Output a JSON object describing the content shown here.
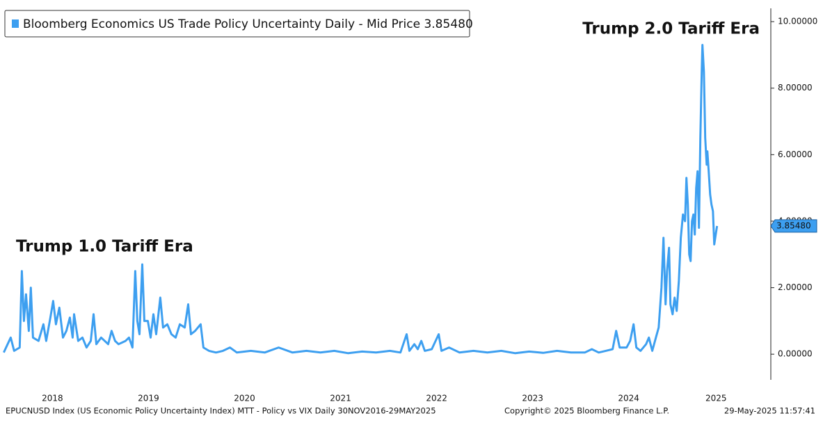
{
  "chart_data": {
    "type": "line",
    "annotations": [
      "Trump 1.0 Tariff Era",
      "Trump 2.0 Tariff Era"
    ],
    "footer_left": "EPUCNUSD Index (US Economic Policy Uncertainty Index) MTT - Policy vs VIX  Daily 30NOV2016-29MAY2025",
    "footer_center": "Copyright© 2025 Bloomberg Finance L.P.",
    "footer_right": "29-May-2025 11:57:41",
    "last_value_label": "3.85480",
    "xlim": [
      2017.99,
      2025.98
    ],
    "xticks": [
      {
        "value": 2018.5,
        "label": "2018"
      },
      {
        "value": 2019.5,
        "label": "2019"
      },
      {
        "value": 2020.5,
        "label": "2020"
      },
      {
        "value": 2021.5,
        "label": "2021"
      },
      {
        "value": 2022.5,
        "label": "2022"
      },
      {
        "value": 2023.5,
        "label": "2023"
      },
      {
        "value": 2024.5,
        "label": "2024"
      },
      {
        "value": 2025.41,
        "label": "2025"
      }
    ],
    "ylim": [
      -0.77,
      10.4
    ],
    "yticks": [
      {
        "value": 0,
        "label": "0.00000"
      },
      {
        "value": 2,
        "label": "2.00000"
      },
      {
        "value": 4,
        "label": "4.00000"
      },
      {
        "value": 6,
        "label": "6.00000"
      },
      {
        "value": 8,
        "label": "8.00000"
      },
      {
        "value": 10,
        "label": "10.00000"
      }
    ],
    "series": [
      {
        "name": "Bloomberg Economics US Trade Policy Uncertainty Daily - Mid Price 3.85480",
        "color": "#3d9ff0",
        "x": [
          2017.993,
          2018.065,
          2018.101,
          2018.159,
          2018.181,
          2018.203,
          2018.225,
          2018.254,
          2018.275,
          2018.297,
          2018.355,
          2018.406,
          2018.435,
          2018.478,
          2018.507,
          2018.536,
          2018.572,
          2018.609,
          2018.645,
          2018.681,
          2018.71,
          2018.725,
          2018.768,
          2018.812,
          2018.855,
          2018.899,
          2018.928,
          2018.957,
          2019.007,
          2019.08,
          2019.116,
          2019.152,
          2019.188,
          2019.261,
          2019.297,
          2019.333,
          2019.362,
          2019.384,
          2019.406,
          2019.435,
          2019.457,
          2019.493,
          2019.522,
          2019.551,
          2019.58,
          2019.623,
          2019.652,
          2019.696,
          2019.739,
          2019.783,
          2019.826,
          2019.877,
          2019.913,
          2019.942,
          2019.986,
          2020.043,
          2020.072,
          2020.13,
          2020.203,
          2020.275,
          2020.348,
          2020.42,
          2020.565,
          2020.71,
          2020.855,
          2021.0,
          2021.145,
          2021.29,
          2021.435,
          2021.58,
          2021.725,
          2021.87,
          2022.014,
          2022.123,
          2022.188,
          2022.217,
          2022.268,
          2022.304,
          2022.341,
          2022.377,
          2022.449,
          2022.522,
          2022.551,
          2022.63,
          2022.739,
          2022.884,
          2023.029,
          2023.174,
          2023.319,
          2023.464,
          2023.609,
          2023.754,
          2023.899,
          2024.043,
          2024.116,
          2024.188,
          2024.261,
          2024.333,
          2024.37,
          2024.406,
          2024.478,
          2024.515,
          2024.551,
          2024.58,
          2024.623,
          2024.681,
          2024.71,
          2024.746,
          2024.783,
          2024.812,
          2024.841,
          2024.862,
          2024.884,
          2024.899,
          2024.92,
          2024.935,
          2024.957,
          2024.978,
          2025.0,
          2025.022,
          2025.043,
          2025.065,
          2025.087,
          2025.101,
          2025.116,
          2025.13,
          2025.145,
          2025.159,
          2025.174,
          2025.188,
          2025.203,
          2025.217,
          2025.232,
          2025.246,
          2025.261,
          2025.268,
          2025.283,
          2025.297,
          2025.312,
          2025.319,
          2025.333,
          2025.348,
          2025.362,
          2025.377,
          2025.391,
          2025.406,
          2025.42
        ],
        "values": [
          0.05,
          0.5,
          0.1,
          0.2,
          2.5,
          1.0,
          1.8,
          0.7,
          2.0,
          0.5,
          0.4,
          0.9,
          0.4,
          1.1,
          1.6,
          0.9,
          1.4,
          0.5,
          0.7,
          1.1,
          0.5,
          1.2,
          0.4,
          0.5,
          0.2,
          0.4,
          1.2,
          0.3,
          0.5,
          0.3,
          0.7,
          0.4,
          0.3,
          0.4,
          0.5,
          0.2,
          2.5,
          1.0,
          0.6,
          2.7,
          1.0,
          1.0,
          0.5,
          1.2,
          0.6,
          1.7,
          0.8,
          0.9,
          0.6,
          0.5,
          0.9,
          0.8,
          1.5,
          0.6,
          0.7,
          0.9,
          0.2,
          0.1,
          0.05,
          0.1,
          0.2,
          0.05,
          0.1,
          0.05,
          0.2,
          0.05,
          0.1,
          0.05,
          0.1,
          0.03,
          0.08,
          0.05,
          0.1,
          0.05,
          0.6,
          0.1,
          0.3,
          0.15,
          0.4,
          0.1,
          0.15,
          0.6,
          0.1,
          0.2,
          0.05,
          0.1,
          0.05,
          0.1,
          0.03,
          0.08,
          0.04,
          0.1,
          0.05,
          0.05,
          0.15,
          0.05,
          0.1,
          0.15,
          0.7,
          0.2,
          0.2,
          0.4,
          0.9,
          0.2,
          0.1,
          0.3,
          0.5,
          0.1,
          0.5,
          0.8,
          2.0,
          3.5,
          1.5,
          2.5,
          3.2,
          1.5,
          1.2,
          1.7,
          1.3,
          2.2,
          3.5,
          4.2,
          4.0,
          5.3,
          4.5,
          3.0,
          2.8,
          4.0,
          4.2,
          3.6,
          5.0,
          5.5,
          3.8,
          6.5,
          8.5,
          9.3,
          8.5,
          6.5,
          5.7,
          6.1,
          5.5,
          4.8,
          4.5,
          4.3,
          3.3,
          3.6,
          3.8548
        ]
      }
    ]
  }
}
